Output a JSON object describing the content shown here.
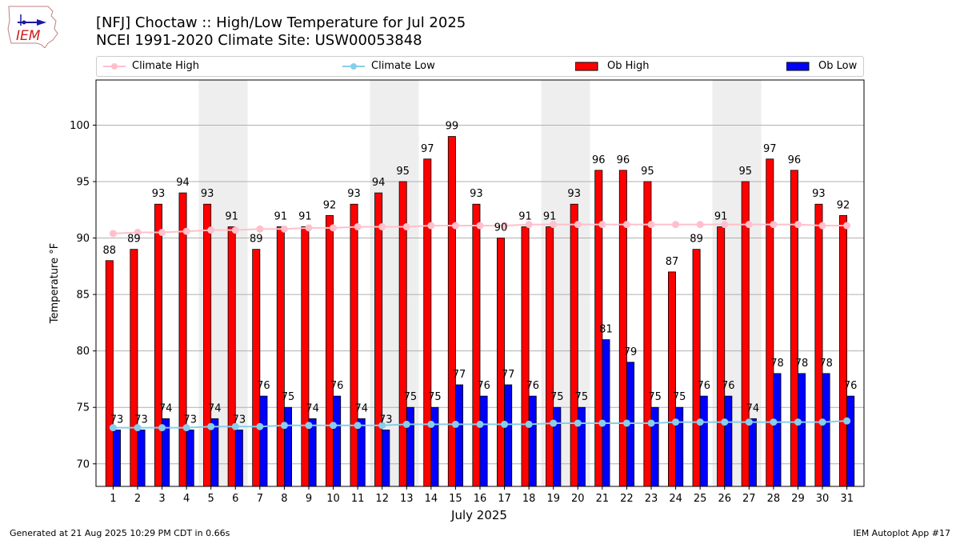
{
  "header": {
    "title_line1": "[NFJ] Choctaw :: High/Low Temperature for Jul 2025",
    "title_line2": "NCEI 1991-2020 Climate Site: USW00053848"
  },
  "logo": {
    "text": "IEM"
  },
  "footer": {
    "left": "Generated at 21 Aug 2025 10:29 PM CDT in 0.66s",
    "right": "IEM Autoplot App #17"
  },
  "colors": {
    "ob_high": "#ff0000",
    "ob_low": "#0000ff",
    "climate_high": "#ffc0cb",
    "climate_low": "#87ceeb",
    "weekend_shade": "#eeeeee",
    "grid": "#b0b0b0"
  },
  "chart_data": {
    "type": "bar",
    "xlabel": "July 2025",
    "ylabel": "Temperature °F",
    "ylim": [
      68,
      104
    ],
    "yticks": [
      70,
      75,
      80,
      85,
      90,
      95,
      100
    ],
    "grid": "horizontal",
    "legend_position": "top",
    "categories": [
      "1",
      "2",
      "3",
      "4",
      "5",
      "6",
      "7",
      "8",
      "9",
      "10",
      "11",
      "12",
      "13",
      "14",
      "15",
      "16",
      "17",
      "18",
      "19",
      "20",
      "21",
      "22",
      "23",
      "24",
      "25",
      "26",
      "27",
      "28",
      "29",
      "30",
      "31"
    ],
    "shaded_days": [
      5,
      6,
      12,
      13,
      19,
      20,
      26,
      27
    ],
    "series": [
      {
        "name": "Ob High",
        "kind": "bar",
        "values": [
          88,
          89,
          93,
          94,
          93,
          91,
          89,
          91,
          91,
          92,
          93,
          94,
          95,
          97,
          99,
          93,
          90,
          91,
          91,
          93,
          96,
          96,
          95,
          87,
          89,
          91,
          95,
          97,
          96,
          93,
          92
        ]
      },
      {
        "name": "Ob Low",
        "kind": "bar",
        "values": [
          73,
          73,
          74,
          73,
          74,
          73,
          76,
          75,
          74,
          76,
          74,
          73,
          75,
          75,
          77,
          76,
          77,
          76,
          75,
          75,
          81,
          79,
          75,
          75,
          76,
          76,
          74,
          78,
          78,
          78,
          76
        ]
      },
      {
        "name": "Climate High",
        "kind": "line",
        "values": [
          90.4,
          90.5,
          90.5,
          90.6,
          90.7,
          90.7,
          90.8,
          90.8,
          90.9,
          90.9,
          91.0,
          91.0,
          91.0,
          91.1,
          91.1,
          91.1,
          91.1,
          91.2,
          91.2,
          91.2,
          91.2,
          91.2,
          91.2,
          91.2,
          91.2,
          91.2,
          91.2,
          91.2,
          91.2,
          91.1,
          91.1
        ]
      },
      {
        "name": "Climate Low",
        "kind": "line",
        "values": [
          73.2,
          73.2,
          73.2,
          73.2,
          73.3,
          73.3,
          73.3,
          73.4,
          73.4,
          73.4,
          73.4,
          73.4,
          73.5,
          73.5,
          73.5,
          73.5,
          73.5,
          73.5,
          73.6,
          73.6,
          73.6,
          73.6,
          73.6,
          73.7,
          73.7,
          73.7,
          73.7,
          73.7,
          73.7,
          73.7,
          73.8
        ]
      }
    ]
  }
}
